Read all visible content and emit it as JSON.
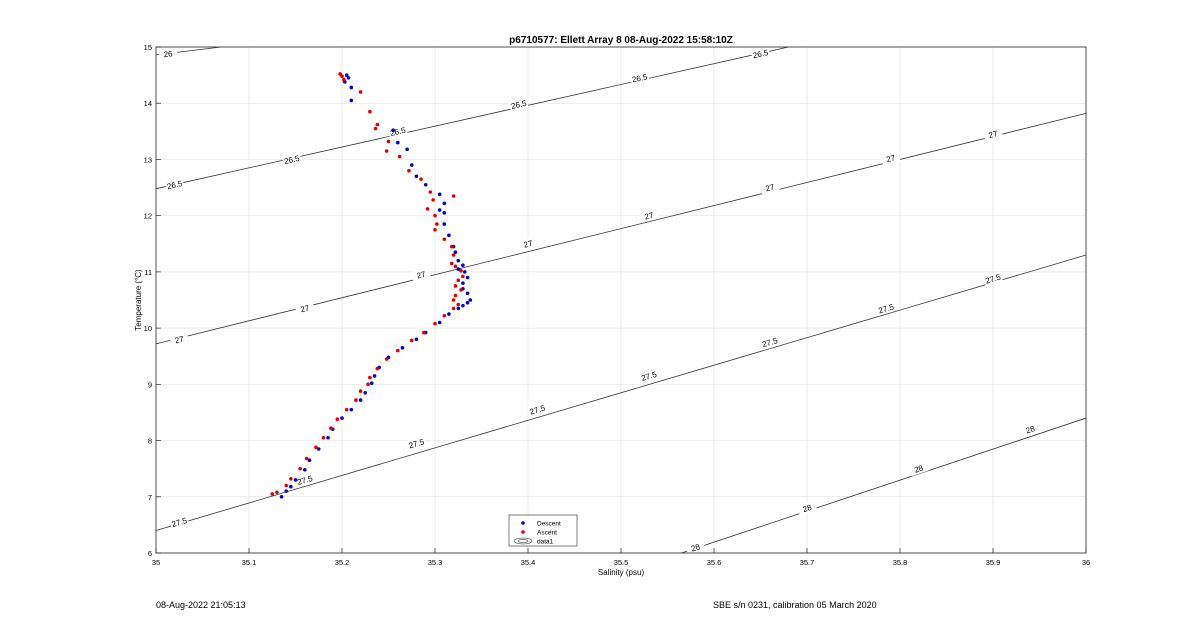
{
  "footer": {
    "left": "08-Aug-2022 21:05:13",
    "right": "SBE s/n 0231, calibration 05 March 2020"
  },
  "chart_data": {
    "type": "scatter",
    "title": "p6710577: Ellett Array 8 08-Aug-2022 15:58:10Z",
    "xlabel": "Salinity (psu)",
    "ylabel": "Temperature (°C)",
    "xlim": [
      35,
      36
    ],
    "ylim": [
      6,
      15
    ],
    "xticks": [
      "35",
      "35.1",
      "35.2",
      "35.3",
      "35.4",
      "35.5",
      "35.6",
      "35.7",
      "35.8",
      "35.9",
      "36"
    ],
    "yticks": [
      "6",
      "7",
      "8",
      "9",
      "10",
      "11",
      "12",
      "13",
      "14",
      "15"
    ],
    "grid": true,
    "legend_position": "bottom-center",
    "colors": {
      "descent": "#0000cc",
      "ascent": "#e00000",
      "contour": "#333333",
      "grid": "#e3e3e3"
    },
    "legend": [
      {
        "label": "Descent",
        "marker": "dot",
        "color": "#0000cc"
      },
      {
        "label": "Ascent",
        "marker": "dot",
        "color": "#e00000"
      },
      {
        "label": "data1",
        "marker": "contour"
      }
    ],
    "series": [
      {
        "name": "Descent",
        "color": "#0000cc",
        "points": [
          [
            35.205,
            14.5
          ],
          [
            35.207,
            14.45
          ],
          [
            35.203,
            14.38
          ],
          [
            35.21,
            14.28
          ],
          [
            35.21,
            14.05
          ],
          [
            35.255,
            13.52
          ],
          [
            35.26,
            13.3
          ],
          [
            35.27,
            13.18
          ],
          [
            35.275,
            12.9
          ],
          [
            35.28,
            12.7
          ],
          [
            35.29,
            12.55
          ],
          [
            35.305,
            12.38
          ],
          [
            35.31,
            12.22
          ],
          [
            35.305,
            12.1
          ],
          [
            35.31,
            12.05
          ],
          [
            35.31,
            11.85
          ],
          [
            35.315,
            11.65
          ],
          [
            35.32,
            11.45
          ],
          [
            35.322,
            11.35
          ],
          [
            35.325,
            11.2
          ],
          [
            35.33,
            11.12
          ],
          [
            35.325,
            11.05
          ],
          [
            35.332,
            11.0
          ],
          [
            35.335,
            10.9
          ],
          [
            35.33,
            10.8
          ],
          [
            35.33,
            10.7
          ],
          [
            35.335,
            10.62
          ],
          [
            35.338,
            10.5
          ],
          [
            35.335,
            10.45
          ],
          [
            35.33,
            10.4
          ],
          [
            35.325,
            10.35
          ],
          [
            35.315,
            10.25
          ],
          [
            35.305,
            10.1
          ],
          [
            35.29,
            9.92
          ],
          [
            35.28,
            9.8
          ],
          [
            35.265,
            9.65
          ],
          [
            35.25,
            9.48
          ],
          [
            35.24,
            9.3
          ],
          [
            35.235,
            9.15
          ],
          [
            35.232,
            9.02
          ],
          [
            35.225,
            8.85
          ],
          [
            35.22,
            8.72
          ],
          [
            35.21,
            8.55
          ],
          [
            35.2,
            8.4
          ],
          [
            35.19,
            8.2
          ],
          [
            35.185,
            8.05
          ],
          [
            35.175,
            7.85
          ],
          [
            35.165,
            7.65
          ],
          [
            35.16,
            7.48
          ],
          [
            35.15,
            7.3
          ],
          [
            35.145,
            7.18
          ],
          [
            35.14,
            7.1
          ],
          [
            35.135,
            7.0
          ]
        ]
      },
      {
        "name": "Ascent",
        "color": "#e00000",
        "points": [
          [
            35.198,
            14.52
          ],
          [
            35.2,
            14.48
          ],
          [
            35.202,
            14.42
          ],
          [
            35.22,
            14.2
          ],
          [
            35.23,
            13.85
          ],
          [
            35.238,
            13.62
          ],
          [
            35.236,
            13.55
          ],
          [
            35.25,
            13.32
          ],
          [
            35.248,
            13.15
          ],
          [
            35.262,
            13.05
          ],
          [
            35.272,
            12.8
          ],
          [
            35.285,
            12.65
          ],
          [
            35.295,
            12.42
          ],
          [
            35.298,
            12.28
          ],
          [
            35.292,
            12.12
          ],
          [
            35.3,
            12.0
          ],
          [
            35.302,
            11.85
          ],
          [
            35.3,
            11.75
          ],
          [
            35.31,
            11.58
          ],
          [
            35.318,
            11.45
          ],
          [
            35.32,
            11.3
          ],
          [
            35.318,
            11.15
          ],
          [
            35.322,
            11.1
          ],
          [
            35.328,
            11.02
          ],
          [
            35.33,
            10.92
          ],
          [
            35.325,
            10.85
          ],
          [
            35.322,
            10.75
          ],
          [
            35.328,
            10.68
          ],
          [
            35.322,
            10.58
          ],
          [
            35.32,
            10.5
          ],
          [
            35.325,
            10.42
          ],
          [
            35.32,
            10.35
          ],
          [
            35.31,
            10.22
          ],
          [
            35.3,
            10.08
          ],
          [
            35.288,
            9.92
          ],
          [
            35.275,
            9.78
          ],
          [
            35.26,
            9.6
          ],
          [
            35.248,
            9.45
          ],
          [
            35.238,
            9.28
          ],
          [
            35.23,
            9.12
          ],
          [
            35.228,
            9.0
          ],
          [
            35.22,
            8.88
          ],
          [
            35.215,
            8.72
          ],
          [
            35.205,
            8.55
          ],
          [
            35.195,
            8.38
          ],
          [
            35.188,
            8.22
          ],
          [
            35.18,
            8.05
          ],
          [
            35.172,
            7.88
          ],
          [
            35.162,
            7.68
          ],
          [
            35.155,
            7.5
          ],
          [
            35.145,
            7.32
          ],
          [
            35.14,
            7.2
          ],
          [
            35.13,
            7.08
          ],
          [
            35.125,
            7.05
          ],
          [
            35.32,
            12.35
          ]
        ]
      }
    ],
    "contours": [
      {
        "level": "26",
        "from": [
          35.0,
          14.86
        ],
        "to": [
          35.07,
          15.0
        ],
        "labels": [
          [
            35.013,
            14.88
          ]
        ]
      },
      {
        "level": "26.5",
        "from": [
          35.0,
          12.48
        ],
        "to": [
          35.68,
          15.0
        ],
        "labels": [
          [
            35.02,
            12.55
          ],
          [
            35.146,
            13.0
          ],
          [
            35.26,
            13.5
          ],
          [
            35.39,
            13.98
          ],
          [
            35.52,
            14.45
          ],
          [
            35.65,
            14.88
          ]
        ]
      },
      {
        "level": "27",
        "from": [
          35.0,
          9.72
        ],
        "to": [
          36.0,
          13.82
        ],
        "labels": [
          [
            35.025,
            9.8
          ],
          [
            35.16,
            10.35
          ],
          [
            35.285,
            10.95
          ],
          [
            35.4,
            11.5
          ],
          [
            35.53,
            12.0
          ],
          [
            35.66,
            12.5
          ],
          [
            35.79,
            13.02
          ],
          [
            35.9,
            13.45
          ]
        ]
      },
      {
        "level": "27.5",
        "from": [
          35.0,
          6.4
        ],
        "to": [
          36.0,
          11.3
        ],
        "labels": [
          [
            35.025,
            6.55
          ],
          [
            35.16,
            7.3
          ],
          [
            35.28,
            7.95
          ],
          [
            35.41,
            8.55
          ],
          [
            35.53,
            9.15
          ],
          [
            35.66,
            9.75
          ],
          [
            35.785,
            10.35
          ],
          [
            35.9,
            10.88
          ]
        ]
      },
      {
        "level": "28",
        "from": [
          35.565,
          6.0
        ],
        "to": [
          36.0,
          8.4
        ],
        "labels": [
          [
            35.58,
            6.1
          ],
          [
            35.7,
            6.8
          ],
          [
            35.82,
            7.5
          ],
          [
            35.94,
            8.2
          ]
        ]
      }
    ]
  }
}
